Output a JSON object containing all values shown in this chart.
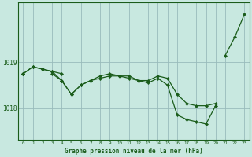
{
  "background_color": "#c8e8e0",
  "plot_bg_color": "#c8e8e0",
  "grid_color": "#99bbbb",
  "line_color": "#1a5c1a",
  "marker_color": "#1a5c1a",
  "xlabel": "Graphe pression niveau de la mer (hPa)",
  "xlim": [
    -0.5,
    23.5
  ],
  "ylim": [
    1017.3,
    1020.3
  ],
  "yticks": [
    1018,
    1019
  ],
  "xticks": [
    0,
    1,
    2,
    3,
    4,
    5,
    6,
    7,
    8,
    9,
    10,
    11,
    12,
    13,
    14,
    15,
    16,
    17,
    18,
    19,
    20,
    21,
    22,
    23
  ],
  "series": [
    [
      1018.75,
      1018.9,
      1018.85,
      1018.8,
      1018.75,
      null,
      null,
      null,
      null,
      null,
      null,
      null,
      null,
      null,
      null,
      null,
      null,
      null,
      null,
      null,
      null,
      1019.15,
      1019.55,
      1020.05
    ],
    [
      1018.75,
      1018.9,
      1018.85,
      1018.8,
      1018.6,
      1018.3,
      1018.5,
      1018.6,
      1018.7,
      1018.75,
      1018.7,
      1018.7,
      1018.6,
      1018.6,
      1018.7,
      1018.65,
      1018.3,
      1018.1,
      1018.05,
      1018.05,
      1018.1,
      null,
      null,
      null
    ],
    [
      1018.75,
      null,
      null,
      1018.75,
      1018.6,
      1018.3,
      1018.5,
      1018.6,
      1018.65,
      1018.7,
      1018.7,
      1018.65,
      1018.6,
      1018.55,
      1018.65,
      1018.5,
      1017.85,
      1017.75,
      1017.7,
      1017.65,
      1018.05,
      null,
      null,
      null
    ]
  ]
}
